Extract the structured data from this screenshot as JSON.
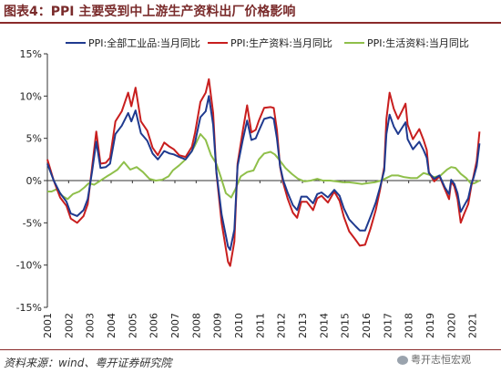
{
  "title": "图表4：PPI 主要受到中上游生产资料出厂价格影响",
  "source": "资料来源：wind、粤开证券研究院",
  "watermark": "粤开志恒宏观",
  "chart_data": {
    "type": "line",
    "xlabel": "",
    "ylabel": "",
    "ylim": [
      -15,
      15
    ],
    "yticks": [
      15,
      10,
      5,
      0,
      -5,
      -10,
      -15
    ],
    "ytick_labels": [
      "15%",
      "10%",
      "5%",
      "0%",
      "-5%",
      "-10%",
      "-15%"
    ],
    "xticks": [
      "2001",
      "2002",
      "2003",
      "2004",
      "2005",
      "2006",
      "2007",
      "2008",
      "2009",
      "2010",
      "2011",
      "2012",
      "2013",
      "2014",
      "2015",
      "2016",
      "2017",
      "2018",
      "2019",
      "2020",
      "2021"
    ],
    "xlim": [
      2001.0,
      2021.4
    ],
    "grid": false,
    "legend_position": "top",
    "series": [
      {
        "name": "PPI:全部工业品:当月同比",
        "color": "#1f3a8f",
        "points": [
          [
            2001.0,
            2.0
          ],
          [
            2001.3,
            0.0
          ],
          [
            2001.6,
            -1.5
          ],
          [
            2001.9,
            -2.5
          ],
          [
            2002.1,
            -3.9
          ],
          [
            2002.4,
            -4.2
          ],
          [
            2002.7,
            -3.5
          ],
          [
            2002.9,
            -2.2
          ],
          [
            2003.1,
            1.0
          ],
          [
            2003.3,
            4.6
          ],
          [
            2003.5,
            1.5
          ],
          [
            2003.75,
            1.6
          ],
          [
            2003.95,
            2.0
          ],
          [
            2004.2,
            5.5
          ],
          [
            2004.5,
            6.5
          ],
          [
            2004.8,
            8.0
          ],
          [
            2004.95,
            7.0
          ],
          [
            2005.15,
            8.3
          ],
          [
            2005.4,
            5.6
          ],
          [
            2005.7,
            4.7
          ],
          [
            2005.95,
            3.2
          ],
          [
            2006.2,
            2.5
          ],
          [
            2006.5,
            3.5
          ],
          [
            2006.75,
            3.2
          ],
          [
            2006.95,
            3.1
          ],
          [
            2007.2,
            2.8
          ],
          [
            2007.5,
            2.5
          ],
          [
            2007.8,
            3.5
          ],
          [
            2007.95,
            4.6
          ],
          [
            2008.2,
            7.5
          ],
          [
            2008.45,
            8.2
          ],
          [
            2008.6,
            10.0
          ],
          [
            2008.8,
            6.6
          ],
          [
            2008.95,
            1.1
          ],
          [
            2009.2,
            -4.0
          ],
          [
            2009.5,
            -7.8
          ],
          [
            2009.6,
            -8.2
          ],
          [
            2009.8,
            -5.8
          ],
          [
            2009.95,
            1.7
          ],
          [
            2010.2,
            4.9
          ],
          [
            2010.4,
            7.1
          ],
          [
            2010.6,
            4.8
          ],
          [
            2010.8,
            5.0
          ],
          [
            2010.95,
            5.9
          ],
          [
            2011.2,
            7.3
          ],
          [
            2011.5,
            7.5
          ],
          [
            2011.65,
            7.3
          ],
          [
            2011.8,
            5.0
          ],
          [
            2011.95,
            1.7
          ],
          [
            2012.1,
            0.0
          ],
          [
            2012.3,
            -1.4
          ],
          [
            2012.55,
            -2.9
          ],
          [
            2012.75,
            -3.5
          ],
          [
            2012.95,
            -1.9
          ],
          [
            2013.2,
            -1.9
          ],
          [
            2013.5,
            -2.7
          ],
          [
            2013.7,
            -1.6
          ],
          [
            2013.9,
            -1.4
          ],
          [
            2014.2,
            -2.0
          ],
          [
            2014.5,
            -1.1
          ],
          [
            2014.75,
            -1.8
          ],
          [
            2014.95,
            -3.3
          ],
          [
            2015.2,
            -4.6
          ],
          [
            2015.5,
            -5.4
          ],
          [
            2015.7,
            -5.9
          ],
          [
            2015.95,
            -5.9
          ],
          [
            2016.2,
            -4.3
          ],
          [
            2016.45,
            -2.6
          ],
          [
            2016.65,
            -0.8
          ],
          [
            2016.85,
            1.2
          ],
          [
            2016.95,
            5.5
          ],
          [
            2017.1,
            7.8
          ],
          [
            2017.3,
            6.4
          ],
          [
            2017.5,
            5.5
          ],
          [
            2017.7,
            6.3
          ],
          [
            2017.85,
            6.9
          ],
          [
            2017.95,
            4.9
          ],
          [
            2018.2,
            3.7
          ],
          [
            2018.5,
            4.6
          ],
          [
            2018.7,
            3.6
          ],
          [
            2018.85,
            2.7
          ],
          [
            2018.95,
            0.9
          ],
          [
            2019.2,
            0.2
          ],
          [
            2019.45,
            0.6
          ],
          [
            2019.7,
            -0.8
          ],
          [
            2019.9,
            -1.6
          ],
          [
            2020.0,
            0.1
          ],
          [
            2020.15,
            -0.4
          ],
          [
            2020.3,
            -1.5
          ],
          [
            2020.45,
            -3.7
          ],
          [
            2020.6,
            -3.0
          ],
          [
            2020.8,
            -2.1
          ],
          [
            2020.95,
            -0.4
          ],
          [
            2021.05,
            0.3
          ],
          [
            2021.2,
            1.7
          ],
          [
            2021.33,
            4.4
          ]
        ]
      },
      {
        "name": "PPI:生产资料:当月同比",
        "color": "#c81e1e",
        "points": [
          [
            2001.0,
            2.5
          ],
          [
            2001.3,
            0.0
          ],
          [
            2001.6,
            -2.0
          ],
          [
            2001.9,
            -3.0
          ],
          [
            2002.1,
            -4.5
          ],
          [
            2002.4,
            -5.0
          ],
          [
            2002.7,
            -4.2
          ],
          [
            2002.9,
            -2.8
          ],
          [
            2003.1,
            1.5
          ],
          [
            2003.3,
            5.8
          ],
          [
            2003.5,
            2.0
          ],
          [
            2003.75,
            2.1
          ],
          [
            2003.95,
            2.7
          ],
          [
            2004.2,
            7.0
          ],
          [
            2004.5,
            8.2
          ],
          [
            2004.8,
            10.4
          ],
          [
            2004.95,
            8.8
          ],
          [
            2005.15,
            11.0
          ],
          [
            2005.4,
            7.0
          ],
          [
            2005.7,
            5.9
          ],
          [
            2005.95,
            3.9
          ],
          [
            2006.2,
            3.0
          ],
          [
            2006.5,
            4.5
          ],
          [
            2006.75,
            4.0
          ],
          [
            2006.95,
            3.7
          ],
          [
            2007.2,
            3.0
          ],
          [
            2007.5,
            2.8
          ],
          [
            2007.8,
            4.0
          ],
          [
            2007.95,
            5.7
          ],
          [
            2008.2,
            9.3
          ],
          [
            2008.45,
            10.4
          ],
          [
            2008.6,
            12.0
          ],
          [
            2008.8,
            8.0
          ],
          [
            2008.95,
            1.0
          ],
          [
            2009.2,
            -5.0
          ],
          [
            2009.5,
            -9.6
          ],
          [
            2009.6,
            -10.1
          ],
          [
            2009.8,
            -7.2
          ],
          [
            2009.95,
            2.0
          ],
          [
            2010.2,
            6.0
          ],
          [
            2010.4,
            8.9
          ],
          [
            2010.6,
            5.7
          ],
          [
            2010.8,
            6.0
          ],
          [
            2010.95,
            7.1
          ],
          [
            2011.2,
            8.6
          ],
          [
            2011.5,
            8.7
          ],
          [
            2011.65,
            8.6
          ],
          [
            2011.8,
            6.0
          ],
          [
            2011.95,
            1.6
          ],
          [
            2012.1,
            -0.3
          ],
          [
            2012.3,
            -2.1
          ],
          [
            2012.55,
            -3.8
          ],
          [
            2012.75,
            -4.4
          ],
          [
            2012.95,
            -2.5
          ],
          [
            2013.2,
            -2.5
          ],
          [
            2013.5,
            -3.5
          ],
          [
            2013.7,
            -2.1
          ],
          [
            2013.9,
            -1.8
          ],
          [
            2014.2,
            -2.6
          ],
          [
            2014.5,
            -1.3
          ],
          [
            2014.75,
            -2.4
          ],
          [
            2014.95,
            -4.3
          ],
          [
            2015.2,
            -6.0
          ],
          [
            2015.5,
            -7.0
          ],
          [
            2015.7,
            -7.7
          ],
          [
            2015.95,
            -7.6
          ],
          [
            2016.2,
            -5.7
          ],
          [
            2016.45,
            -3.5
          ],
          [
            2016.65,
            -1.1
          ],
          [
            2016.85,
            1.6
          ],
          [
            2016.95,
            7.3
          ],
          [
            2017.1,
            10.4
          ],
          [
            2017.3,
            8.5
          ],
          [
            2017.5,
            7.3
          ],
          [
            2017.7,
            8.3
          ],
          [
            2017.85,
            9.1
          ],
          [
            2017.95,
            6.6
          ],
          [
            2018.2,
            4.9
          ],
          [
            2018.5,
            6.1
          ],
          [
            2018.7,
            4.8
          ],
          [
            2018.85,
            3.6
          ],
          [
            2018.95,
            1.0
          ],
          [
            2019.2,
            -0.1
          ],
          [
            2019.45,
            0.5
          ],
          [
            2019.7,
            -1.0
          ],
          [
            2019.9,
            -2.2
          ],
          [
            2020.0,
            -0.1
          ],
          [
            2020.15,
            -0.7
          ],
          [
            2020.3,
            -2.2
          ],
          [
            2020.45,
            -5.0
          ],
          [
            2020.6,
            -4.0
          ],
          [
            2020.8,
            -2.8
          ],
          [
            2020.95,
            -0.6
          ],
          [
            2021.05,
            0.5
          ],
          [
            2021.2,
            2.3
          ],
          [
            2021.33,
            5.8
          ]
        ]
      },
      {
        "name": "PPI:生活资料:当月同比",
        "color": "#8fbf4a",
        "points": [
          [
            2001.0,
            -1.3
          ],
          [
            2001.2,
            -1.3
          ],
          [
            2001.45,
            -1.0
          ],
          [
            2001.7,
            -1.8
          ],
          [
            2001.95,
            -2.2
          ],
          [
            2002.2,
            -1.6
          ],
          [
            2002.5,
            -1.3
          ],
          [
            2002.75,
            -0.8
          ],
          [
            2002.95,
            -0.3
          ],
          [
            2003.2,
            -0.5
          ],
          [
            2003.5,
            0.0
          ],
          [
            2003.8,
            0.5
          ],
          [
            2004.0,
            0.8
          ],
          [
            2004.3,
            1.3
          ],
          [
            2004.6,
            2.2
          ],
          [
            2004.9,
            1.3
          ],
          [
            2005.2,
            1.6
          ],
          [
            2005.5,
            1.0
          ],
          [
            2005.8,
            0.2
          ],
          [
            2006.1,
            0.0
          ],
          [
            2006.4,
            0.1
          ],
          [
            2006.7,
            0.5
          ],
          [
            2006.9,
            1.2
          ],
          [
            2007.2,
            1.8
          ],
          [
            2007.5,
            2.5
          ],
          [
            2007.8,
            3.5
          ],
          [
            2007.95,
            4.2
          ],
          [
            2008.2,
            5.5
          ],
          [
            2008.45,
            4.8
          ],
          [
            2008.7,
            3.0
          ],
          [
            2008.95,
            2.0
          ],
          [
            2009.15,
            0.5
          ],
          [
            2009.4,
            -1.5
          ],
          [
            2009.65,
            -2.0
          ],
          [
            2009.85,
            -1.0
          ],
          [
            2010.1,
            0.5
          ],
          [
            2010.4,
            1.0
          ],
          [
            2010.7,
            1.2
          ],
          [
            2010.95,
            2.5
          ],
          [
            2011.2,
            3.2
          ],
          [
            2011.5,
            3.4
          ],
          [
            2011.7,
            3.1
          ],
          [
            2011.9,
            2.5
          ],
          [
            2012.2,
            1.5
          ],
          [
            2012.5,
            0.8
          ],
          [
            2012.8,
            0.2
          ],
          [
            2013.1,
            -0.1
          ],
          [
            2013.4,
            0.0
          ],
          [
            2013.7,
            0.2
          ],
          [
            2013.95,
            0.0
          ],
          [
            2014.3,
            0.0
          ],
          [
            2014.6,
            -0.1
          ],
          [
            2014.9,
            -0.2
          ],
          [
            2015.2,
            -0.2
          ],
          [
            2015.5,
            -0.3
          ],
          [
            2015.8,
            -0.4
          ],
          [
            2016.1,
            -0.3
          ],
          [
            2016.4,
            -0.2
          ],
          [
            2016.7,
            0.0
          ],
          [
            2016.95,
            0.3
          ],
          [
            2017.2,
            0.6
          ],
          [
            2017.5,
            0.6
          ],
          [
            2017.8,
            0.4
          ],
          [
            2018.1,
            0.3
          ],
          [
            2018.4,
            0.3
          ],
          [
            2018.7,
            0.9
          ],
          [
            2018.95,
            0.7
          ],
          [
            2019.2,
            0.4
          ],
          [
            2019.5,
            0.6
          ],
          [
            2019.8,
            1.3
          ],
          [
            2020.0,
            1.6
          ],
          [
            2020.2,
            1.5
          ],
          [
            2020.45,
            0.8
          ],
          [
            2020.7,
            0.3
          ],
          [
            2020.95,
            -0.4
          ],
          [
            2021.1,
            -0.3
          ],
          [
            2021.33,
            0.0
          ]
        ]
      }
    ]
  }
}
